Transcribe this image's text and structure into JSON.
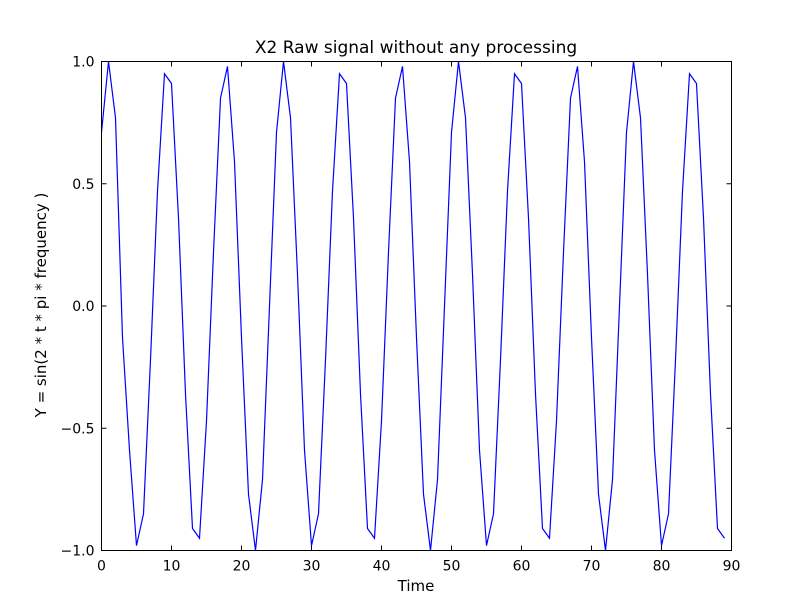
{
  "chart_data": {
    "type": "line",
    "title": "X2 Raw signal without any processing",
    "xlabel": "Time",
    "ylabel": "Y = sin(2 * t * pi * frequency )",
    "xlim": [
      0,
      90
    ],
    "ylim": [
      -1.0,
      1.0
    ],
    "xticks": [
      0,
      10,
      20,
      30,
      40,
      50,
      60,
      70,
      80,
      90
    ],
    "xtick_labels": [
      "0",
      "10",
      "20",
      "30",
      "40",
      "50",
      "60",
      "70",
      "80",
      "90"
    ],
    "yticks": [
      -1.0,
      -0.5,
      0.0,
      0.5,
      1.0
    ],
    "ytick_labels": [
      "−1.0",
      "−0.5",
      "0.0",
      "0.5",
      "1.0"
    ],
    "grid": false,
    "line_color": "#0000ff",
    "series": [
      {
        "x": [
          0,
          1,
          2,
          3,
          4,
          5,
          6,
          7,
          8,
          9,
          10,
          11,
          12,
          13,
          14,
          15,
          16,
          17,
          18,
          19,
          20,
          21,
          22,
          23,
          24,
          25,
          26,
          27,
          28,
          29,
          30,
          31,
          32,
          33,
          34,
          35,
          36,
          37,
          38,
          39,
          40,
          41,
          42,
          43,
          44,
          45,
          46,
          47,
          48,
          49,
          50,
          51,
          52,
          53,
          54,
          55,
          56,
          57,
          58,
          59,
          60,
          61,
          62,
          63,
          64,
          65,
          66,
          67,
          68,
          69,
          70,
          71,
          72,
          73,
          74,
          75,
          76,
          77,
          78,
          79,
          80,
          81,
          82,
          83,
          84,
          85,
          86,
          87,
          88,
          89
        ],
        "values": [
          0.71,
          1.0,
          0.77,
          -0.13,
          -0.59,
          -0.98,
          -0.85,
          -0.22,
          0.47,
          0.95,
          0.91,
          0.36,
          -0.36,
          -0.91,
          -0.95,
          -0.47,
          0.22,
          0.85,
          0.98,
          0.59,
          -0.13,
          -0.77,
          -1.0,
          -0.71,
          0.0,
          0.71,
          1.0,
          0.77,
          0.13,
          -0.59,
          -0.98,
          -0.85,
          -0.22,
          0.47,
          0.95,
          0.91,
          0.36,
          -0.36,
          -0.91,
          -0.95,
          -0.47,
          0.22,
          0.85,
          0.98,
          0.59,
          -0.13,
          -0.77,
          -1.0,
          -0.71,
          0.0,
          0.71,
          1.0,
          0.77,
          0.13,
          -0.59,
          -0.98,
          -0.85,
          -0.22,
          0.47,
          0.95,
          0.91,
          0.36,
          -0.36,
          -0.91,
          -0.95,
          -0.47,
          0.22,
          0.85,
          0.98,
          0.59,
          -0.13,
          -0.77,
          -1.0,
          -0.71,
          0.0,
          0.71,
          1.0,
          0.77,
          0.13,
          -0.59,
          -0.98,
          -0.85,
          -0.22,
          0.47,
          0.95,
          0.91,
          0.36,
          -0.36,
          -0.91,
          -0.95
        ]
      }
    ]
  }
}
